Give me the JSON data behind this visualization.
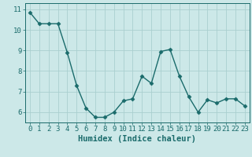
{
  "x": [
    0,
    1,
    2,
    3,
    4,
    5,
    6,
    7,
    8,
    9,
    10,
    11,
    12,
    13,
    14,
    15,
    16,
    17,
    18,
    19,
    20,
    21,
    22,
    23
  ],
  "y": [
    10.85,
    10.3,
    10.3,
    10.3,
    8.9,
    7.3,
    6.2,
    5.75,
    5.75,
    6.0,
    6.55,
    6.65,
    7.75,
    7.4,
    8.95,
    9.05,
    7.75,
    6.75,
    6.0,
    6.6,
    6.45,
    6.65,
    6.65,
    6.3
  ],
  "line_color": "#1a6b6b",
  "marker": "D",
  "markersize": 2.5,
  "linewidth": 1.0,
  "background_color": "#cce8e8",
  "grid_color": "#aacfcf",
  "xlabel": "Humidex (Indice chaleur)",
  "xlabel_fontsize": 7.5,
  "tick_fontsize": 6.5,
  "ylim": [
    5.5,
    11.3
  ],
  "xlim": [
    -0.5,
    23.5
  ],
  "yticks": [
    6,
    7,
    8,
    9,
    10,
    11
  ],
  "xticks": [
    0,
    1,
    2,
    3,
    4,
    5,
    6,
    7,
    8,
    9,
    10,
    11,
    12,
    13,
    14,
    15,
    16,
    17,
    18,
    19,
    20,
    21,
    22,
    23
  ]
}
